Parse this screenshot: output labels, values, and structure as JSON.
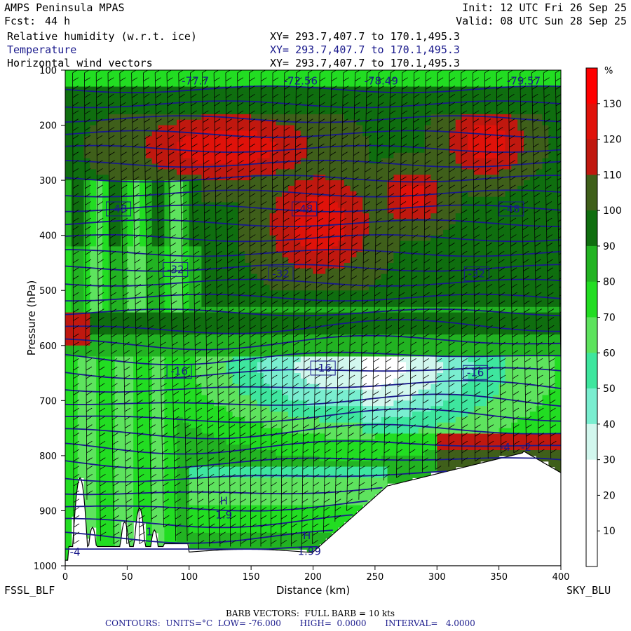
{
  "header": {
    "model": "AMPS Peninsula MPAS",
    "fcst_label": "Fcst:",
    "fcst_value": "44 h",
    "init": "Init: 12 UTC Fri 26 Sep 25",
    "valid": "Valid: 08 UTC Sun 28 Sep 25"
  },
  "fields": [
    {
      "name": "Relative humidity (w.r.t. ice)",
      "xy": "XY= 293.7,407.7 to 170.1,495.3",
      "color": "#000000"
    },
    {
      "name": "Temperature",
      "xy": "XY= 293.7,407.7 to 170.1,495.3",
      "color": "#1a1a8c"
    },
    {
      "name": "Horizontal wind vectors",
      "xy": "XY= 293.7,407.7 to 170.1,495.3",
      "color": "#000000"
    }
  ],
  "footer": {
    "left_station": "FSSL_BLF",
    "right_station": "SKY_BLU",
    "barb_note": "BARB VECTORS:  FULL BARB = 10 kts",
    "contours": "CONTOURS:  UNITS=°C  LOW= -76.000       HIGH=  0.0000       INTERVAL=   4.0000"
  },
  "chart_data": {
    "type": "heatmap",
    "xlabel": "Distance (km)",
    "ylabel": "Pressure (hPa)",
    "xlim": [
      0,
      400
    ],
    "ylim": [
      1000,
      100
    ],
    "xticks": [
      "0",
      "50",
      "100",
      "150",
      "200",
      "250",
      "300",
      "350",
      "400"
    ],
    "yticks": [
      "100",
      "200",
      "300",
      "400",
      "500",
      "600",
      "700",
      "800",
      "900",
      "1000"
    ],
    "colorbar": {
      "unit": "%",
      "labels": [
        "10",
        "20",
        "30",
        "40",
        "50",
        "60",
        "70",
        "80",
        "90",
        "100",
        "110",
        "120",
        "130"
      ],
      "bins": [
        {
          "lo": 0,
          "hi": 10,
          "color": "#ffffff"
        },
        {
          "lo": 10,
          "hi": 20,
          "color": "#ffffff"
        },
        {
          "lo": 20,
          "hi": 30,
          "color": "#ffffff"
        },
        {
          "lo": 30,
          "hi": 40,
          "color": "#d2f7ee"
        },
        {
          "lo": 40,
          "hi": 50,
          "color": "#7aeed0"
        },
        {
          "lo": 50,
          "hi": 60,
          "color": "#3ee69e"
        },
        {
          "lo": 60,
          "hi": 70,
          "color": "#5ee35e"
        },
        {
          "lo": 70,
          "hi": 80,
          "color": "#22dd22"
        },
        {
          "lo": 80,
          "hi": 90,
          "color": "#22b322"
        },
        {
          "lo": 90,
          "hi": 100,
          "color": "#0f6e0f"
        },
        {
          "lo": 100,
          "hi": 110,
          "color": "#3f5f1a"
        },
        {
          "lo": 110,
          "hi": 120,
          "color": "#c0180f"
        },
        {
          "lo": 120,
          "hi": 130,
          "color": "#e0120a"
        },
        {
          "lo": 130,
          "hi": 140,
          "color": "#ff0000"
        }
      ]
    },
    "temperature_labels": [
      {
        "x": 105,
        "p": 120,
        "text": "-77.7"
      },
      {
        "x": 190,
        "p": 120,
        "text": "-72.56"
      },
      {
        "x": 255,
        "p": 120,
        "text": "-78.49"
      },
      {
        "x": 370,
        "p": 120,
        "text": "-79.57"
      },
      {
        "x": 43,
        "p": 352,
        "text": "-48"
      },
      {
        "x": 193,
        "p": 352,
        "text": "-48"
      },
      {
        "x": 360,
        "p": 352,
        "text": "-48"
      },
      {
        "x": 89,
        "p": 462,
        "text": "-32"
      },
      {
        "x": 174,
        "p": 470,
        "text": "-32"
      },
      {
        "x": 332,
        "p": 470,
        "text": "-32"
      },
      {
        "x": 92,
        "p": 647,
        "text": "-16"
      },
      {
        "x": 208,
        "p": 641,
        "text": "-16"
      },
      {
        "x": 331,
        "p": 649,
        "text": "-16"
      },
      {
        "x": 355,
        "p": 785,
        "text": "-4"
      },
      {
        "x": 372,
        "p": 785,
        "text": "-2"
      },
      {
        "x": 128,
        "p": 882,
        "text": "H"
      },
      {
        "x": 128,
        "p": 908,
        "text": "1.9"
      },
      {
        "x": 195,
        "p": 945,
        "text": "H"
      },
      {
        "x": 197,
        "p": 974,
        "text": "1.99"
      },
      {
        "x": 8,
        "p": 975,
        "text": "-4"
      },
      {
        "x": 68,
        "p": 938,
        "text": "1"
      }
    ]
  }
}
